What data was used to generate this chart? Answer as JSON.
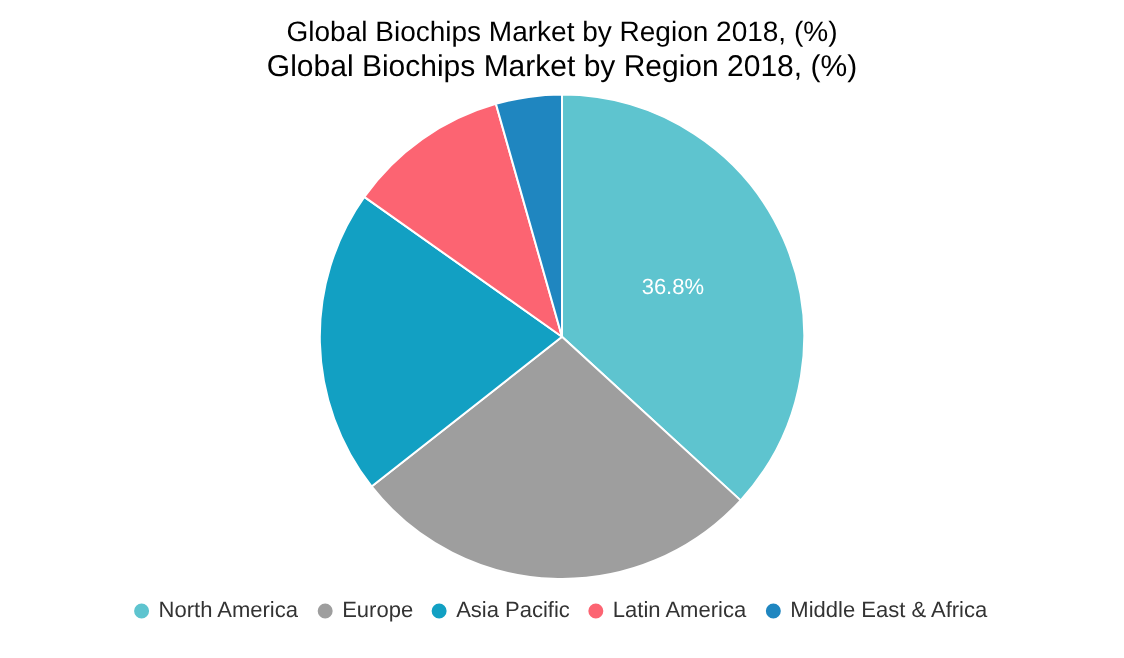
{
  "chart_data": {
    "type": "pie",
    "title": "Global Biochips Market by Region 2018, (%)",
    "subtitle": "Global Biochips Market by Region 2018, (%)",
    "categories": [
      "North America",
      "Europe",
      "Asia Pacific",
      "Latin America",
      "Middle East & Africa"
    ],
    "values": [
      36.8,
      27.6,
      20.4,
      10.8,
      4.4
    ],
    "colors": [
      "#5ec4cf",
      "#9e9e9e",
      "#12a0c3",
      "#fc6472",
      "#1f86c0"
    ],
    "value_labels": [
      "36.8%",
      null,
      null,
      null,
      null
    ],
    "legend": "bottom"
  }
}
